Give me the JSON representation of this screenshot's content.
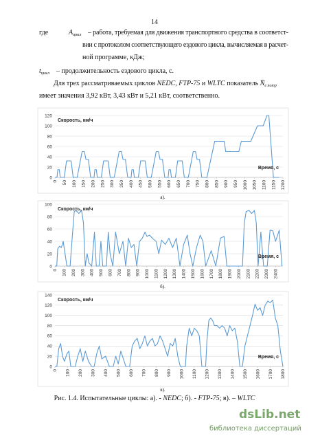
{
  "page_number": "14",
  "definitions": [
    {
      "prefix": "где",
      "symbol": "A",
      "subscript": "цикл",
      "lines": [
        "– работа, требуемая для движения транспортного средства в соответст-",
        "вии с протоколом соответствующего ездового цикла, вычисляемая в расчет-",
        "ной программе, кДж;"
      ]
    },
    {
      "symbol": "t",
      "subscript": "цикл",
      "lines": [
        "– продолжительность ездового цикла, с."
      ]
    }
  ],
  "statement": {
    "runs": [
      "Для трех рассматриваемых циклов ",
      "NEDC",
      ", ",
      "FTP-75",
      " и ",
      "WLTC",
      " показатель ",
      "N̄",
      "e потр"
    ],
    "line2": "имеет значения 3,92 кВт, 3,43 кВт и 5,21 кВт, соответственно."
  },
  "chart_data": [
    {
      "type": "line",
      "ylabel": "Скорость, км/ч",
      "xlabel": "Время, с",
      "caption": "а).",
      "color": "#5b9bd5",
      "grid": true,
      "xlim": [
        0,
        1200
      ],
      "ylim": [
        0,
        120
      ],
      "yticks": [
        0,
        20,
        40,
        60,
        80,
        100,
        120
      ],
      "xticks": [
        0,
        50,
        100,
        150,
        200,
        250,
        300,
        350,
        400,
        450,
        500,
        550,
        600,
        650,
        700,
        750,
        800,
        850,
        900,
        950,
        1000,
        1050,
        1100,
        1150,
        1200
      ],
      "x": [
        0,
        11,
        15,
        23,
        28,
        49,
        61,
        85,
        96,
        117,
        143,
        155,
        163,
        176,
        188,
        195,
        206,
        210,
        218,
        223,
        244,
        256,
        280,
        291,
        312,
        338,
        350,
        358,
        371,
        383,
        390,
        401,
        405,
        413,
        418,
        439,
        451,
        475,
        486,
        507,
        533,
        545,
        553,
        566,
        578,
        585,
        596,
        600,
        608,
        613,
        634,
        646,
        670,
        681,
        702,
        728,
        740,
        748,
        761,
        773,
        780,
        800,
        841,
        891,
        899,
        968,
        981,
        1031,
        1066,
        1096,
        1116,
        1126,
        1150,
        1180
      ],
      "values": [
        0,
        0,
        15,
        15,
        0,
        0,
        32,
        32,
        0,
        0,
        50,
        50,
        35,
        35,
        0,
        0,
        0,
        15,
        15,
        0,
        0,
        32,
        32,
        0,
        0,
        50,
        50,
        35,
        35,
        0,
        0,
        0,
        15,
        15,
        0,
        0,
        32,
        32,
        0,
        0,
        50,
        50,
        35,
        35,
        0,
        0,
        0,
        15,
        15,
        0,
        0,
        32,
        32,
        0,
        0,
        50,
        50,
        35,
        35,
        0,
        0,
        0,
        70,
        70,
        50,
        50,
        70,
        70,
        100,
        100,
        120,
        120,
        0,
        0
      ]
    },
    {
      "type": "line",
      "ylabel": "Скорость, км/ч",
      "xlabel": "Время, с",
      "caption": "б).",
      "color": "#5b9bd5",
      "grid": true,
      "xlim": [
        0,
        2480
      ],
      "ylim": [
        0,
        100
      ],
      "yticks": [
        0,
        20,
        40,
        60,
        80,
        100
      ],
      "xticks": [
        0,
        100,
        200,
        300,
        400,
        500,
        600,
        700,
        800,
        900,
        1000,
        1100,
        1200,
        1300,
        1400,
        1500,
        1600,
        1700,
        1800,
        1900,
        2000,
        2100,
        2200,
        2300,
        2400
      ],
      "x": [
        0,
        20,
        30,
        50,
        70,
        90,
        110,
        130,
        165,
        190,
        210,
        230,
        260,
        290,
        310,
        330,
        350,
        370,
        400,
        430,
        450,
        480,
        500,
        520,
        560,
        580,
        600,
        630,
        660,
        700,
        740,
        770,
        800,
        830,
        860,
        890,
        920,
        950,
        980,
        1000,
        1030,
        1060,
        1100,
        1130,
        1160,
        1200,
        1240,
        1280,
        1320,
        1360,
        1400,
        1440,
        1470,
        1500,
        1540,
        1580,
        1610,
        1640,
        1700,
        1750,
        1800,
        1840,
        1870,
        2040,
        2060,
        2080,
        2110,
        2140,
        2170,
        2190,
        2210,
        2240,
        2270,
        2310,
        2340,
        2370,
        2400,
        2440,
        2470
      ],
      "values": [
        0,
        0,
        28,
        32,
        30,
        40,
        20,
        0,
        0,
        50,
        88,
        90,
        85,
        90,
        70,
        0,
        20,
        5,
        0,
        55,
        0,
        0,
        40,
        0,
        0,
        55,
        20,
        0,
        55,
        20,
        40,
        0,
        45,
        30,
        35,
        0,
        40,
        45,
        55,
        48,
        50,
        45,
        40,
        20,
        42,
        35,
        45,
        30,
        45,
        0,
        35,
        50,
        20,
        0,
        30,
        50,
        40,
        0,
        25,
        0,
        45,
        48,
        0,
        0,
        70,
        88,
        90,
        85,
        90,
        70,
        0,
        55,
        0,
        0,
        58,
        57,
        40,
        58,
        0
      ]
    },
    {
      "type": "line",
      "ylabel": "Скорость, км/ч",
      "xlabel": "Время, с",
      "caption": "в).",
      "color": "#5b9bd5",
      "grid": true,
      "xlim": [
        0,
        1800
      ],
      "ylim": [
        0,
        140
      ],
      "yticks": [
        0,
        20,
        40,
        60,
        80,
        100,
        120,
        140
      ],
      "xticks": [
        0,
        100,
        200,
        300,
        400,
        500,
        600,
        700,
        800,
        900,
        1000,
        1100,
        1200,
        1300,
        1400,
        1500,
        1600,
        1700,
        1800
      ],
      "x": [
        0,
        15,
        30,
        45,
        60,
        75,
        95,
        110,
        125,
        160,
        180,
        200,
        220,
        240,
        265,
        290,
        310,
        330,
        350,
        370,
        400,
        430,
        460,
        480,
        500,
        520,
        540,
        560,
        590,
        610,
        630,
        650,
        670,
        690,
        710,
        730,
        750,
        770,
        790,
        810,
        830,
        850,
        870,
        890,
        910,
        930,
        950,
        970,
        990,
        1030,
        1040,
        1060,
        1080,
        1100,
        1120,
        1140,
        1160,
        1190,
        1200,
        1215,
        1230,
        1245,
        1260,
        1280,
        1300,
        1320,
        1340,
        1360,
        1380,
        1400,
        1420,
        1440,
        1460,
        1480,
        1500,
        1530,
        1560,
        1580,
        1600,
        1620,
        1640,
        1660,
        1680,
        1700,
        1720,
        1740,
        1760,
        1780,
        1800
      ],
      "values": [
        0,
        0,
        35,
        45,
        20,
        10,
        25,
        30,
        0,
        0,
        20,
        35,
        10,
        30,
        10,
        0,
        0,
        25,
        40,
        15,
        20,
        0,
        0,
        20,
        5,
        30,
        15,
        0,
        0,
        40,
        50,
        55,
        35,
        45,
        60,
        40,
        50,
        55,
        40,
        45,
        60,
        50,
        35,
        20,
        45,
        40,
        55,
        20,
        0,
        0,
        40,
        75,
        60,
        75,
        70,
        60,
        0,
        0,
        50,
        90,
        95,
        90,
        80,
        80,
        75,
        80,
        75,
        60,
        80,
        70,
        75,
        50,
        0,
        0,
        40,
        70,
        100,
        122,
        110,
        115,
        100,
        120,
        128,
        125,
        130,
        95,
        80,
        30,
        0
      ]
    }
  ],
  "figure_caption": {
    "runs": [
      "Рис. 1.4. Испытательные циклы: а). - ",
      "NEDC",
      "; б). - ",
      "FTP-75",
      "; в). – ",
      "WLTC"
    ]
  },
  "watermark": {
    "site": "dsLib.net",
    "tagline": "библиотека диссертаций"
  }
}
